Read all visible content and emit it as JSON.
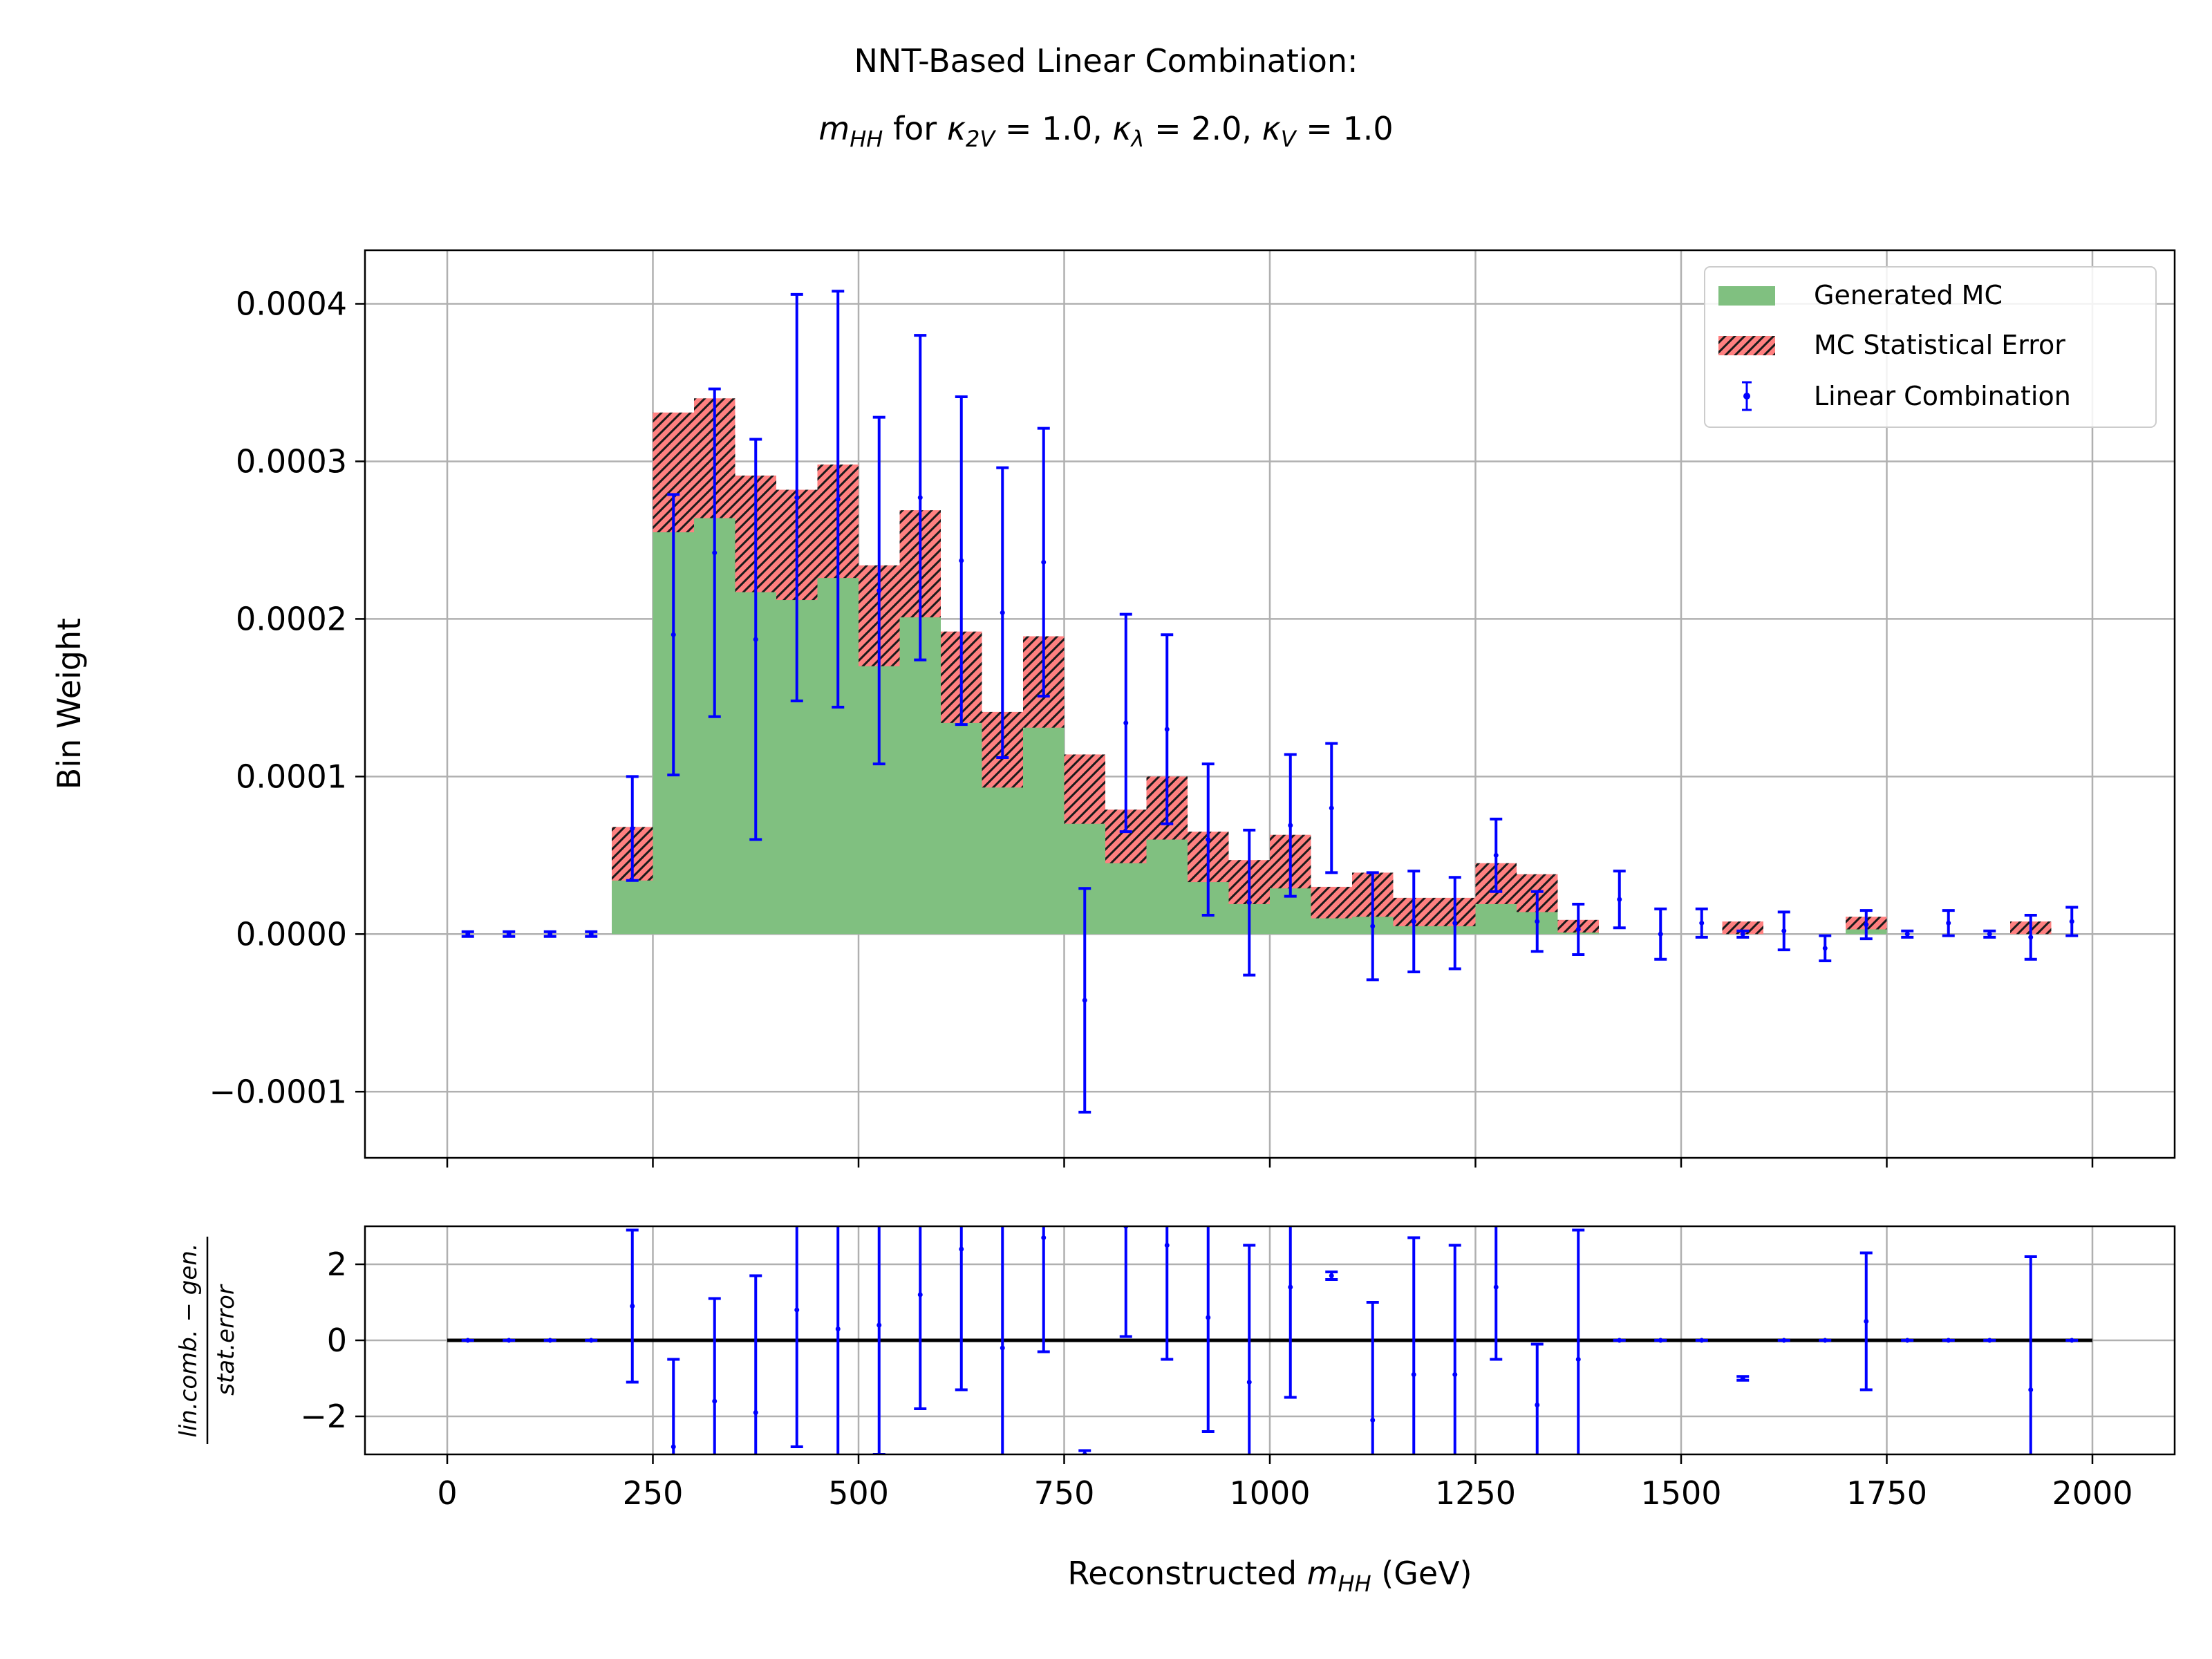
{
  "figure": {
    "title_line1": "NNT-Based Linear Combination:",
    "title_line2_parts": [
      {
        "t": "m",
        "i": true
      },
      {
        "t": "HH",
        "i": true,
        "sub": true
      },
      {
        "t": " for "
      },
      {
        "t": "κ",
        "i": true
      },
      {
        "t": "2V",
        "i": true,
        "sub": true
      },
      {
        "t": " = 1.0, "
      },
      {
        "t": "κ",
        "i": true
      },
      {
        "t": "λ",
        "i": true,
        "sub": true
      },
      {
        "t": " = 2.0, "
      },
      {
        "t": "κ",
        "i": true
      },
      {
        "t": "V",
        "i": true,
        "sub": true
      },
      {
        "t": " = 1.0"
      }
    ]
  },
  "colors": {
    "mc_fill": "#80c080",
    "err_fill": "#ff8080",
    "hatch": "#1a1a1a",
    "lin_comb": "#0000ff",
    "grid": "#b0b0b0",
    "zero_line": "#000000"
  },
  "chart_data": [
    {
      "type": "bar",
      "panel": "main",
      "bin_edges": [
        0,
        50,
        100,
        150,
        200,
        250,
        300,
        350,
        400,
        450,
        500,
        550,
        600,
        650,
        700,
        750,
        800,
        850,
        900,
        950,
        1000,
        1050,
        1100,
        1150,
        1200,
        1250,
        1300,
        1350,
        1400,
        1450,
        1500,
        1550,
        1600,
        1650,
        1700,
        1750,
        1800,
        1850,
        1900,
        1950,
        2000
      ],
      "ylabel": "Bin Weight",
      "ylim": [
        -0.000142,
        0.000434
      ],
      "xlim": [
        -100,
        2100
      ],
      "yticks": [
        "−0.0001",
        "0.0000",
        "0.0001",
        "0.0002",
        "0.0003",
        "0.0004"
      ],
      "ytick_values": [
        -0.0001,
        0,
        0.0001,
        0.0002,
        0.0003,
        0.0004
      ],
      "grid": true,
      "legend_position": "top-right",
      "legend": [
        "Generated MC",
        "MC Statistical Error",
        "Linear Combination"
      ],
      "series": [
        {
          "name": "Generated MC",
          "values": [
            0,
            0,
            0,
            0,
            5.1e-05,
            0.000293,
            0.000302,
            0.000254,
            0.000247,
            0.000262,
            0.000202,
            0.000235,
            0.000163,
            0.000117,
            0.00016,
            9.2e-05,
            6.2e-05,
            8e-05,
            4.9e-05,
            3.3e-05,
            4.6e-05,
            2e-05,
            2.5e-05,
            1.4e-05,
            1.4e-05,
            3.2e-05,
            2.6e-05,
            5e-06,
            0,
            0,
            0,
            4e-06,
            0,
            0,
            7e-06,
            0,
            0,
            0,
            4e-06,
            0
          ]
        },
        {
          "name": "MC Statistical Error",
          "values": [
            0,
            0,
            0,
            0,
            1.7e-05,
            3.8e-05,
            3.8e-05,
            3.7e-05,
            3.5e-05,
            3.6e-05,
            3.2e-05,
            3.4e-05,
            2.9e-05,
            2.4e-05,
            2.9e-05,
            2.2e-05,
            1.7e-05,
            2e-05,
            1.6e-05,
            1.4e-05,
            1.7e-05,
            1e-05,
            1.4e-05,
            9e-06,
            9e-06,
            1.3e-05,
            1.2e-05,
            4e-06,
            0,
            0,
            0,
            4e-06,
            0,
            0,
            4e-06,
            0,
            0,
            0,
            4e-06,
            0
          ]
        },
        {
          "name": "Linear Combination",
          "values": [
            0,
            0,
            0,
            0,
            6.7e-05,
            0.00019,
            0.000242,
            0.000187,
            0.000277,
            0.000276,
            0.000218,
            0.000277,
            0.000237,
            0.000204,
            0.000236,
            -4.2e-05,
            0.000134,
            0.00013,
            6e-05,
            2e-05,
            6.9e-05,
            8e-05,
            5e-06,
            8e-06,
            7e-06,
            5e-05,
            8e-06,
            3e-06,
            2.2e-05,
            0,
            7e-06,
            0,
            2e-06,
            -9e-06,
            6e-06,
            0,
            7e-06,
            0,
            -2e-06,
            8e-06
          ],
          "errors": [
            1.5e-06,
            1.5e-06,
            1.5e-06,
            1.5e-06,
            3.3e-05,
            8.9e-05,
            0.000104,
            0.000127,
            0.000129,
            0.000132,
            0.00011,
            0.000103,
            0.000104,
            9.2e-05,
            8.5e-05,
            7.1e-05,
            6.9e-05,
            6e-05,
            4.8e-05,
            4.6e-05,
            4.5e-05,
            4.1e-05,
            3.4e-05,
            3.2e-05,
            2.9e-05,
            2.3e-05,
            1.9e-05,
            1.6e-05,
            1.8e-05,
            1.6e-05,
            9e-06,
            2e-06,
            1.2e-05,
            8e-06,
            9e-06,
            2e-06,
            8e-06,
            2e-06,
            1.4e-05,
            9e-06
          ]
        }
      ]
    },
    {
      "type": "scatter",
      "panel": "ratio",
      "x": [
        25,
        75,
        125,
        175,
        225,
        275,
        325,
        375,
        425,
        475,
        525,
        575,
        625,
        675,
        725,
        775,
        825,
        875,
        925,
        975,
        1025,
        1075,
        1125,
        1175,
        1225,
        1275,
        1325,
        1375,
        1425,
        1475,
        1525,
        1575,
        1625,
        1675,
        1725,
        1775,
        1825,
        1875,
        1925,
        1975
      ],
      "xlabel_parts": [
        {
          "t": "Reconstructed "
        },
        {
          "t": "m",
          "i": true
        },
        {
          "t": "HH",
          "i": true,
          "sub": true
        },
        {
          "t": " (GeV)"
        }
      ],
      "xticks": [
        "0",
        "250",
        "500",
        "750",
        "1000",
        "1250",
        "1500",
        "1750",
        "2000"
      ],
      "xtick_values": [
        0,
        250,
        500,
        750,
        1000,
        1250,
        1500,
        1750,
        2000
      ],
      "ylabel_num": "lin.comb. − gen.",
      "ylabel_den": "stat.error",
      "ylim": [
        -3,
        3
      ],
      "yticks": [
        "−2",
        "0",
        "2"
      ],
      "ytick_values": [
        -2,
        0,
        2
      ],
      "grid": true,
      "series": [
        {
          "name": "ratio",
          "values": [
            0,
            0,
            0,
            0,
            0.9,
            -2.8,
            -1.6,
            -1.9,
            0.8,
            0.3,
            0.4,
            1.2,
            2.4,
            -0.2,
            2.7,
            -3.0,
            3.0,
            2.5,
            0.6,
            -1.1,
            1.4,
            1.7,
            -2.1,
            -0.9,
            -0.9,
            1.4,
            -1.7,
            -0.5,
            0,
            0,
            0,
            -1.0,
            0,
            0,
            0.5,
            0,
            0,
            0,
            -1.3,
            0
          ],
          "errors": [
            0,
            0,
            0,
            0,
            2.0,
            2.3,
            2.7,
            3.6,
            3.6,
            3.7,
            3.4,
            3.0,
            3.7,
            3.9,
            3.0,
            0.1,
            2.9,
            3.0,
            3.0,
            3.6,
            2.9,
            0.1,
            3.1,
            3.6,
            3.4,
            1.9,
            1.6,
            3.4,
            0,
            0,
            0,
            0.05,
            0,
            0,
            1.8,
            0,
            0,
            0,
            3.5,
            0
          ]
        }
      ]
    }
  ]
}
